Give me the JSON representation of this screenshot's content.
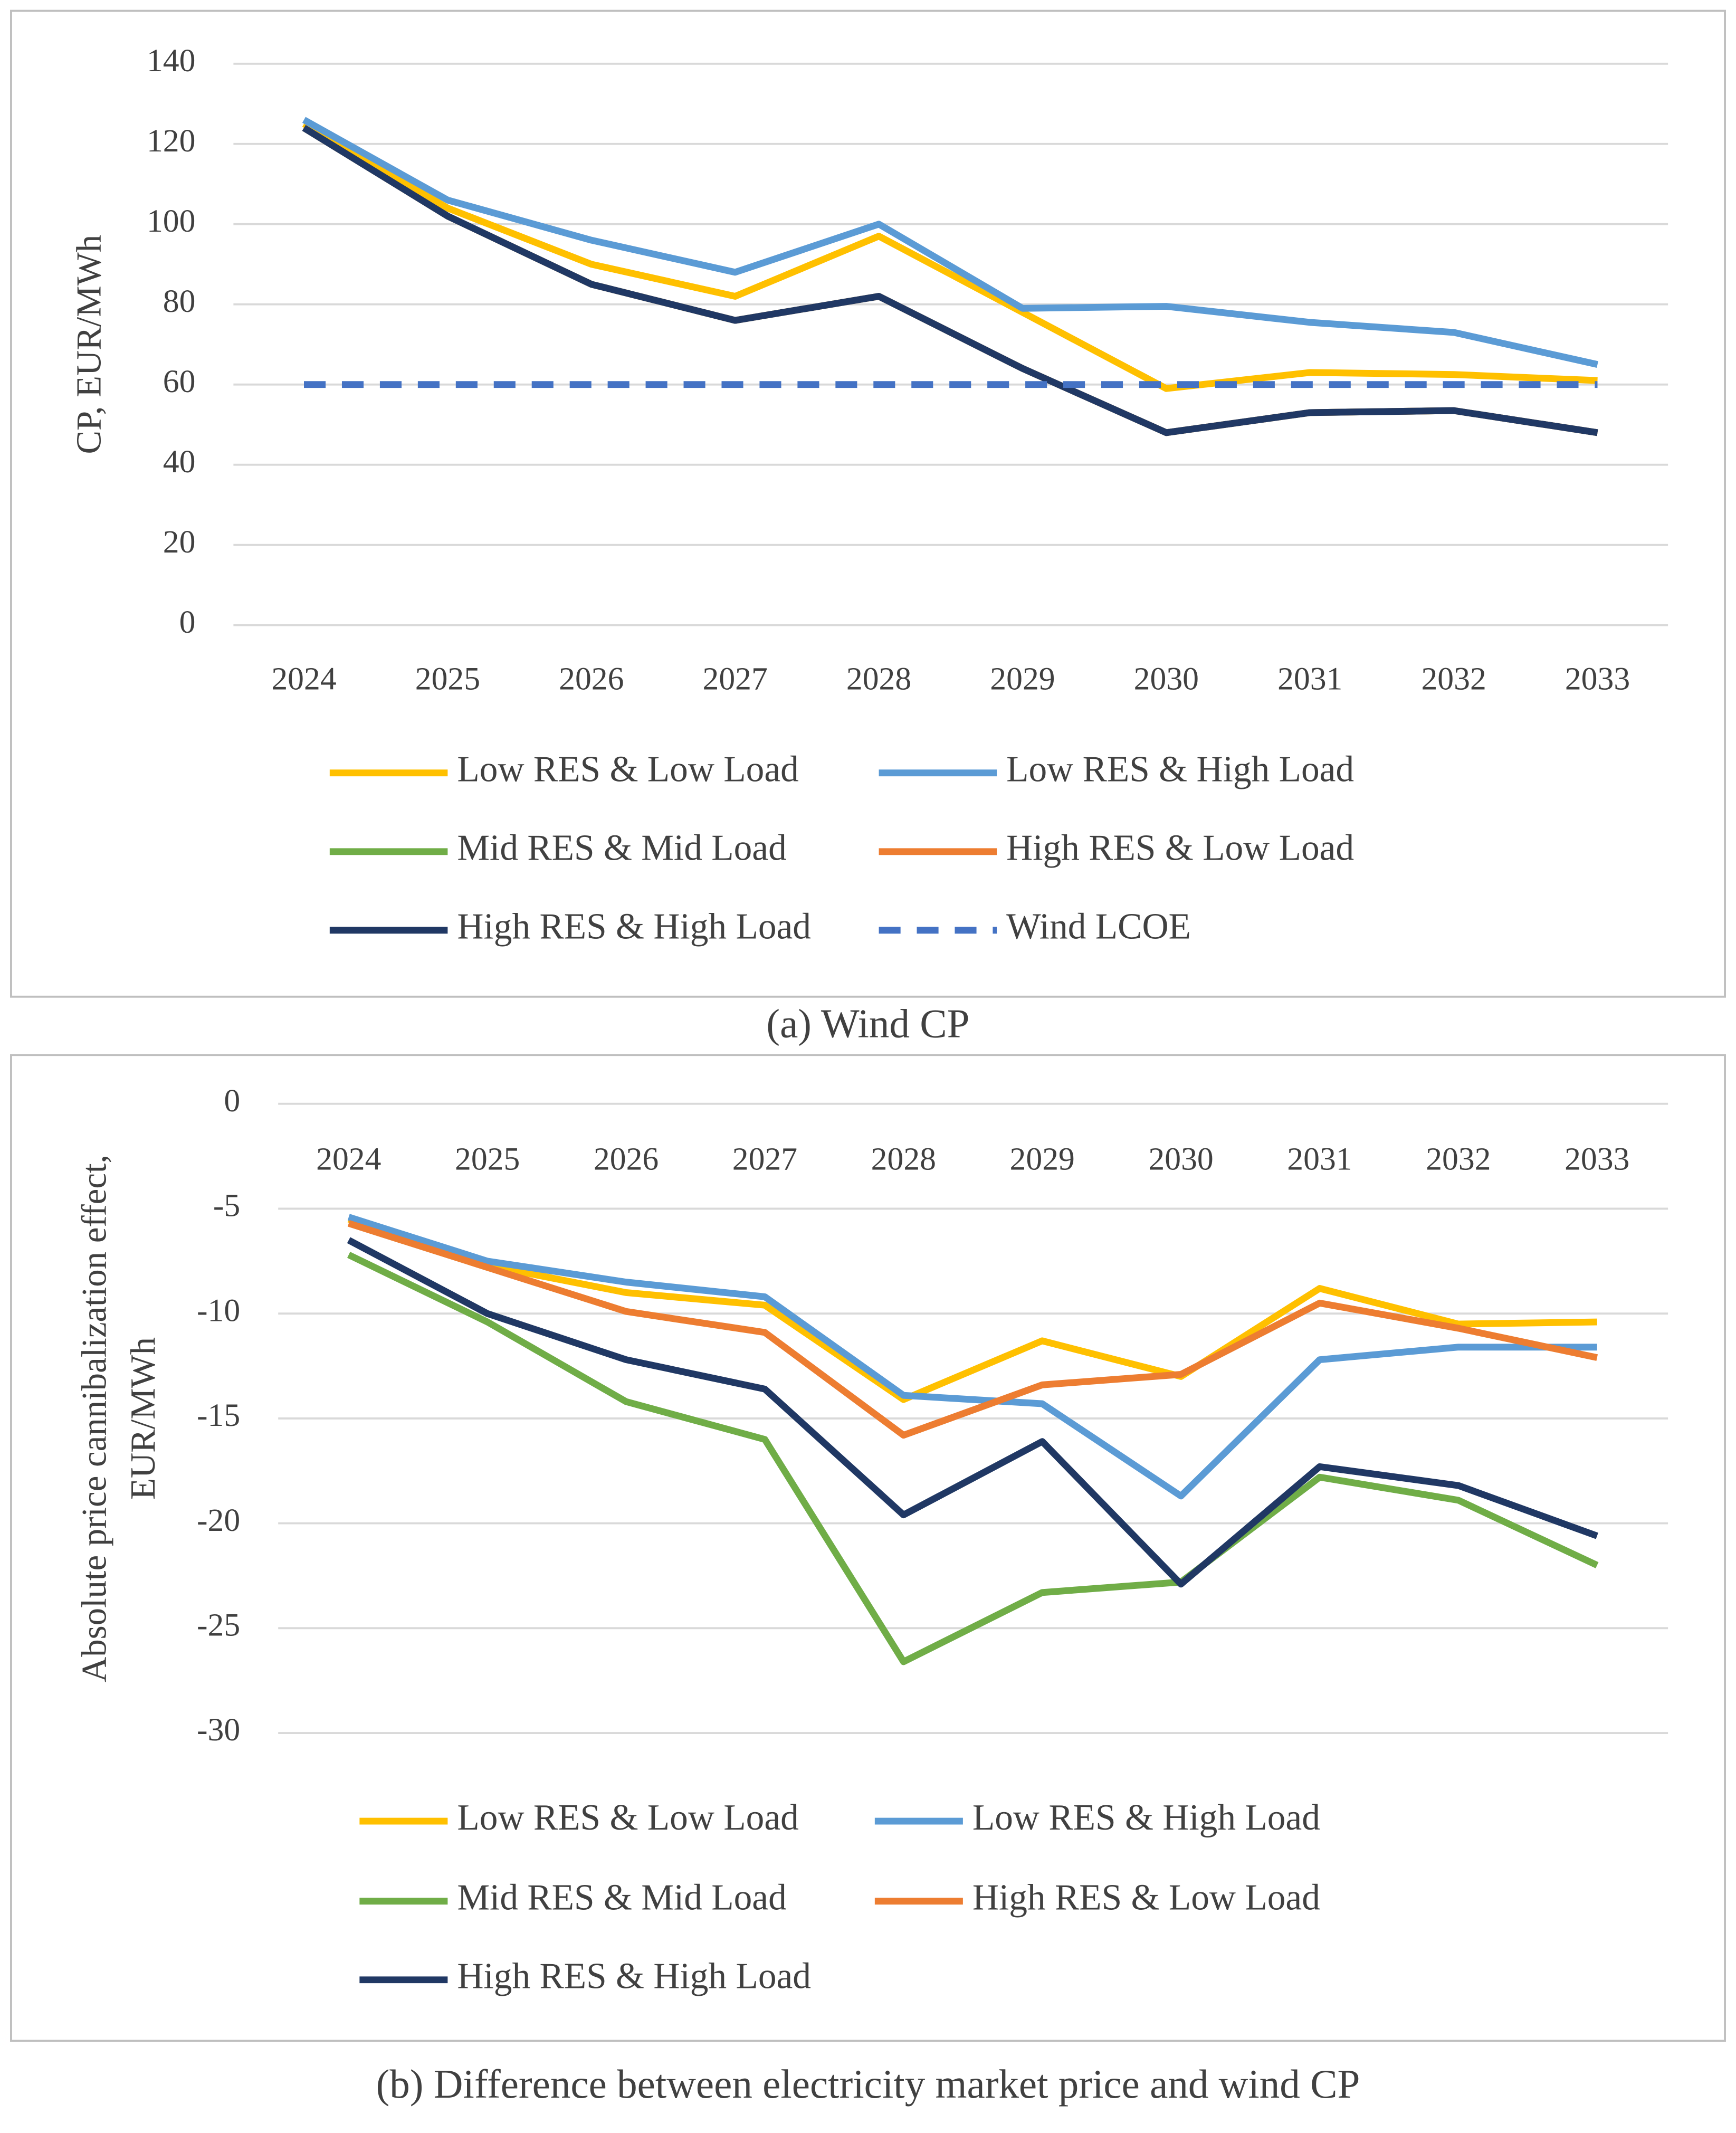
{
  "chart_data": [
    {
      "type": "line",
      "caption": "(a) Wind CP",
      "y_label": [
        "CP, EUR/MWh"
      ],
      "categories": [
        "2024",
        "2025",
        "2026",
        "2027",
        "2028",
        "2029",
        "2030",
        "2031",
        "2032",
        "2033"
      ],
      "ylim": [
        0,
        140
      ],
      "yticks": [
        0,
        20,
        40,
        60,
        80,
        100,
        120,
        140
      ],
      "grid": true,
      "series": [
        {
          "name": "Low RES & Low Load",
          "color": "#ffc000",
          "values": [
            125,
            104,
            90,
            82,
            97,
            78,
            59,
            63,
            62.5,
            61
          ]
        },
        {
          "name": "Low RES & High Load",
          "color": "#5b9bd5",
          "values": [
            126,
            106,
            96,
            88,
            100,
            79,
            79.5,
            75.5,
            73,
            65
          ]
        },
        {
          "name": "Mid RES & Mid Load",
          "color": "#70ad47",
          "values": [
            124,
            102,
            85,
            76,
            82,
            64,
            48,
            53,
            53.5,
            48
          ]
        },
        {
          "name": "High RES & Low Load",
          "color": "#ed7d31",
          "values": [
            124,
            102,
            85,
            76,
            82,
            64,
            48,
            53,
            53.5,
            48
          ]
        },
        {
          "name": "High RES & High Load",
          "color": "#203864",
          "values": [
            124,
            102,
            85,
            76,
            82,
            64,
            48,
            53,
            53.5,
            48
          ]
        },
        {
          "name": "Wind LCOE",
          "color": "#4472c4",
          "linestyle": "dashed",
          "values": [
            60,
            60,
            60,
            60,
            60,
            60,
            60,
            60,
            60,
            60
          ]
        }
      ]
    },
    {
      "type": "line",
      "caption": "(b) Difference between electricity market price and wind CP",
      "y_label": [
        "Absolute price cannibalization effect,",
        "EUR/MWh"
      ],
      "categories": [
        "2024",
        "2025",
        "2026",
        "2027",
        "2028",
        "2029",
        "2030",
        "2031",
        "2032",
        "2033"
      ],
      "ylim": [
        -30,
        0
      ],
      "yticks": [
        -30,
        -25,
        -20,
        -15,
        -10,
        -5,
        0
      ],
      "grid": true,
      "series": [
        {
          "name": "Low RES & Low Load",
          "color": "#ffc000",
          "values": [
            -5.5,
            -7.7,
            -9,
            -9.6,
            -14.1,
            -11.3,
            -13,
            -8.8,
            -10.5,
            -10.4
          ]
        },
        {
          "name": "Low RES & High Load",
          "color": "#5b9bd5",
          "values": [
            -5.4,
            -7.5,
            -8.5,
            -9.2,
            -13.9,
            -14.3,
            -18.7,
            -12.2,
            -11.6,
            -11.6
          ]
        },
        {
          "name": "Mid RES & Mid Load",
          "color": "#70ad47",
          "values": [
            -7.2,
            -10.4,
            -14.2,
            -16,
            -26.6,
            -23.3,
            -22.8,
            -17.8,
            -18.9,
            -22
          ]
        },
        {
          "name": "High RES & Low Load",
          "color": "#ed7d31",
          "values": [
            -5.7,
            -7.8,
            -9.9,
            -10.9,
            -15.8,
            -13.4,
            -12.9,
            -9.5,
            -10.7,
            -12.1
          ]
        },
        {
          "name": "High RES & High Load",
          "color": "#203864",
          "values": [
            -6.5,
            -10,
            -12.2,
            -13.6,
            -19.6,
            -16.1,
            -22.9,
            -17.3,
            -18.2,
            -20.6
          ]
        }
      ]
    }
  ]
}
